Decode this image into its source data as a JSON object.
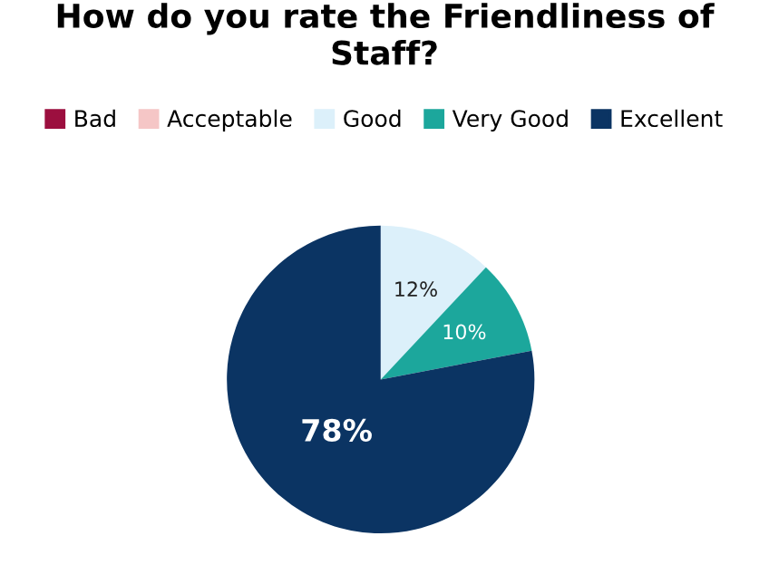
{
  "chart_data": {
    "type": "pie",
    "title": "How do you rate the Friendliness of Staff?",
    "categories": [
      "Bad",
      "Acceptable",
      "Good",
      "Very Good",
      "Excellent"
    ],
    "values": [
      0,
      0,
      12,
      10,
      78
    ],
    "colors": [
      "#9c0f3f",
      "#f5c6c6",
      "#dcf0fa",
      "#1ca79c",
      "#0b3463"
    ],
    "value_labels": [
      null,
      null,
      "12%",
      "10%",
      "78%"
    ],
    "legend": "top"
  }
}
